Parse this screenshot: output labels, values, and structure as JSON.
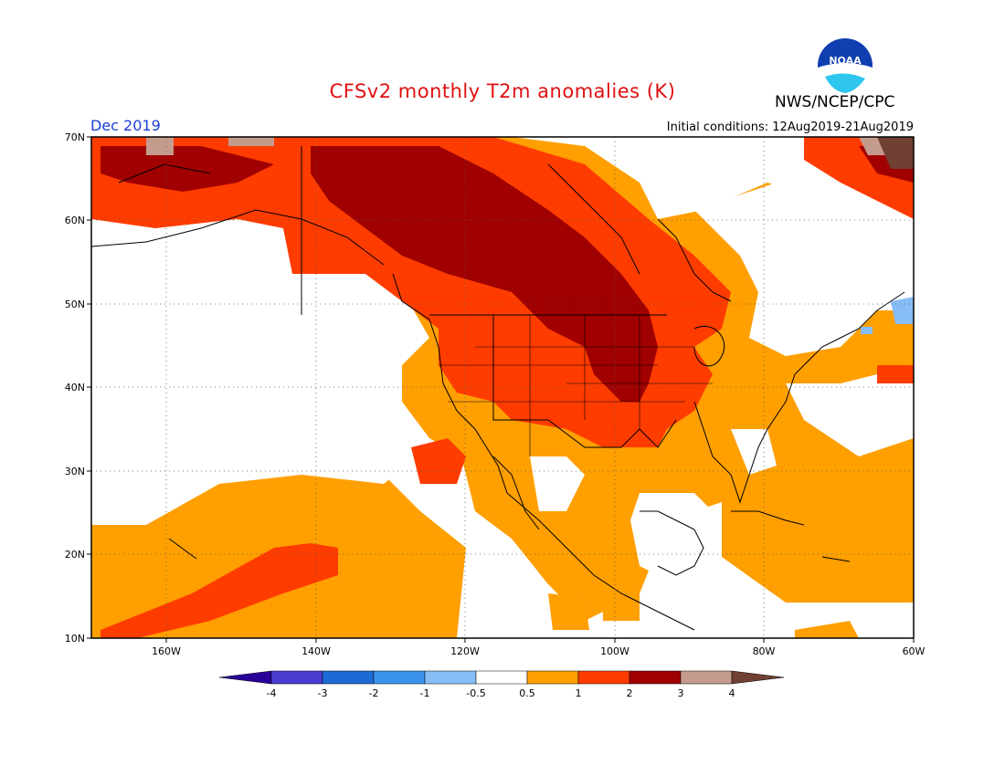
{
  "title": "CFSv2 monthly T2m anomalies (K)",
  "month_label": "Dec 2019",
  "initial_conditions": "Initial conditions: 12Aug2019-21Aug2019",
  "agency": "NWS/NCEP/CPC",
  "logo_text": "NOAA",
  "colors": {
    "title": "#e01010",
    "month": "#1a3fd6",
    "c_m4": "#2a009a",
    "c_m3": "#4b3bd0",
    "c_m2": "#1e6ad4",
    "c_m1": "#3c93ee",
    "c_m05": "#86bdf5",
    "c_0": "#ffffff",
    "c_05": "#ff9f00",
    "c_1": "#ff3c00",
    "c_2": "#a00000",
    "c_3": "#c49b8d",
    "c_4": "#704033"
  },
  "map": {
    "lat_labels": [
      "70N",
      "60N",
      "50N",
      "40N",
      "30N",
      "20N",
      "10N"
    ],
    "lon_labels": [
      "160W",
      "140W",
      "120W",
      "100W",
      "80W",
      "60W"
    ],
    "lat_range": [
      10,
      70
    ],
    "lon_range": [
      -170,
      -60
    ],
    "grid": "dotted"
  },
  "legend": {
    "labels": [
      "-4",
      "-3",
      "-2",
      "-1",
      "-0.5",
      "0.5",
      "1",
      "2",
      "3",
      "4"
    ]
  }
}
